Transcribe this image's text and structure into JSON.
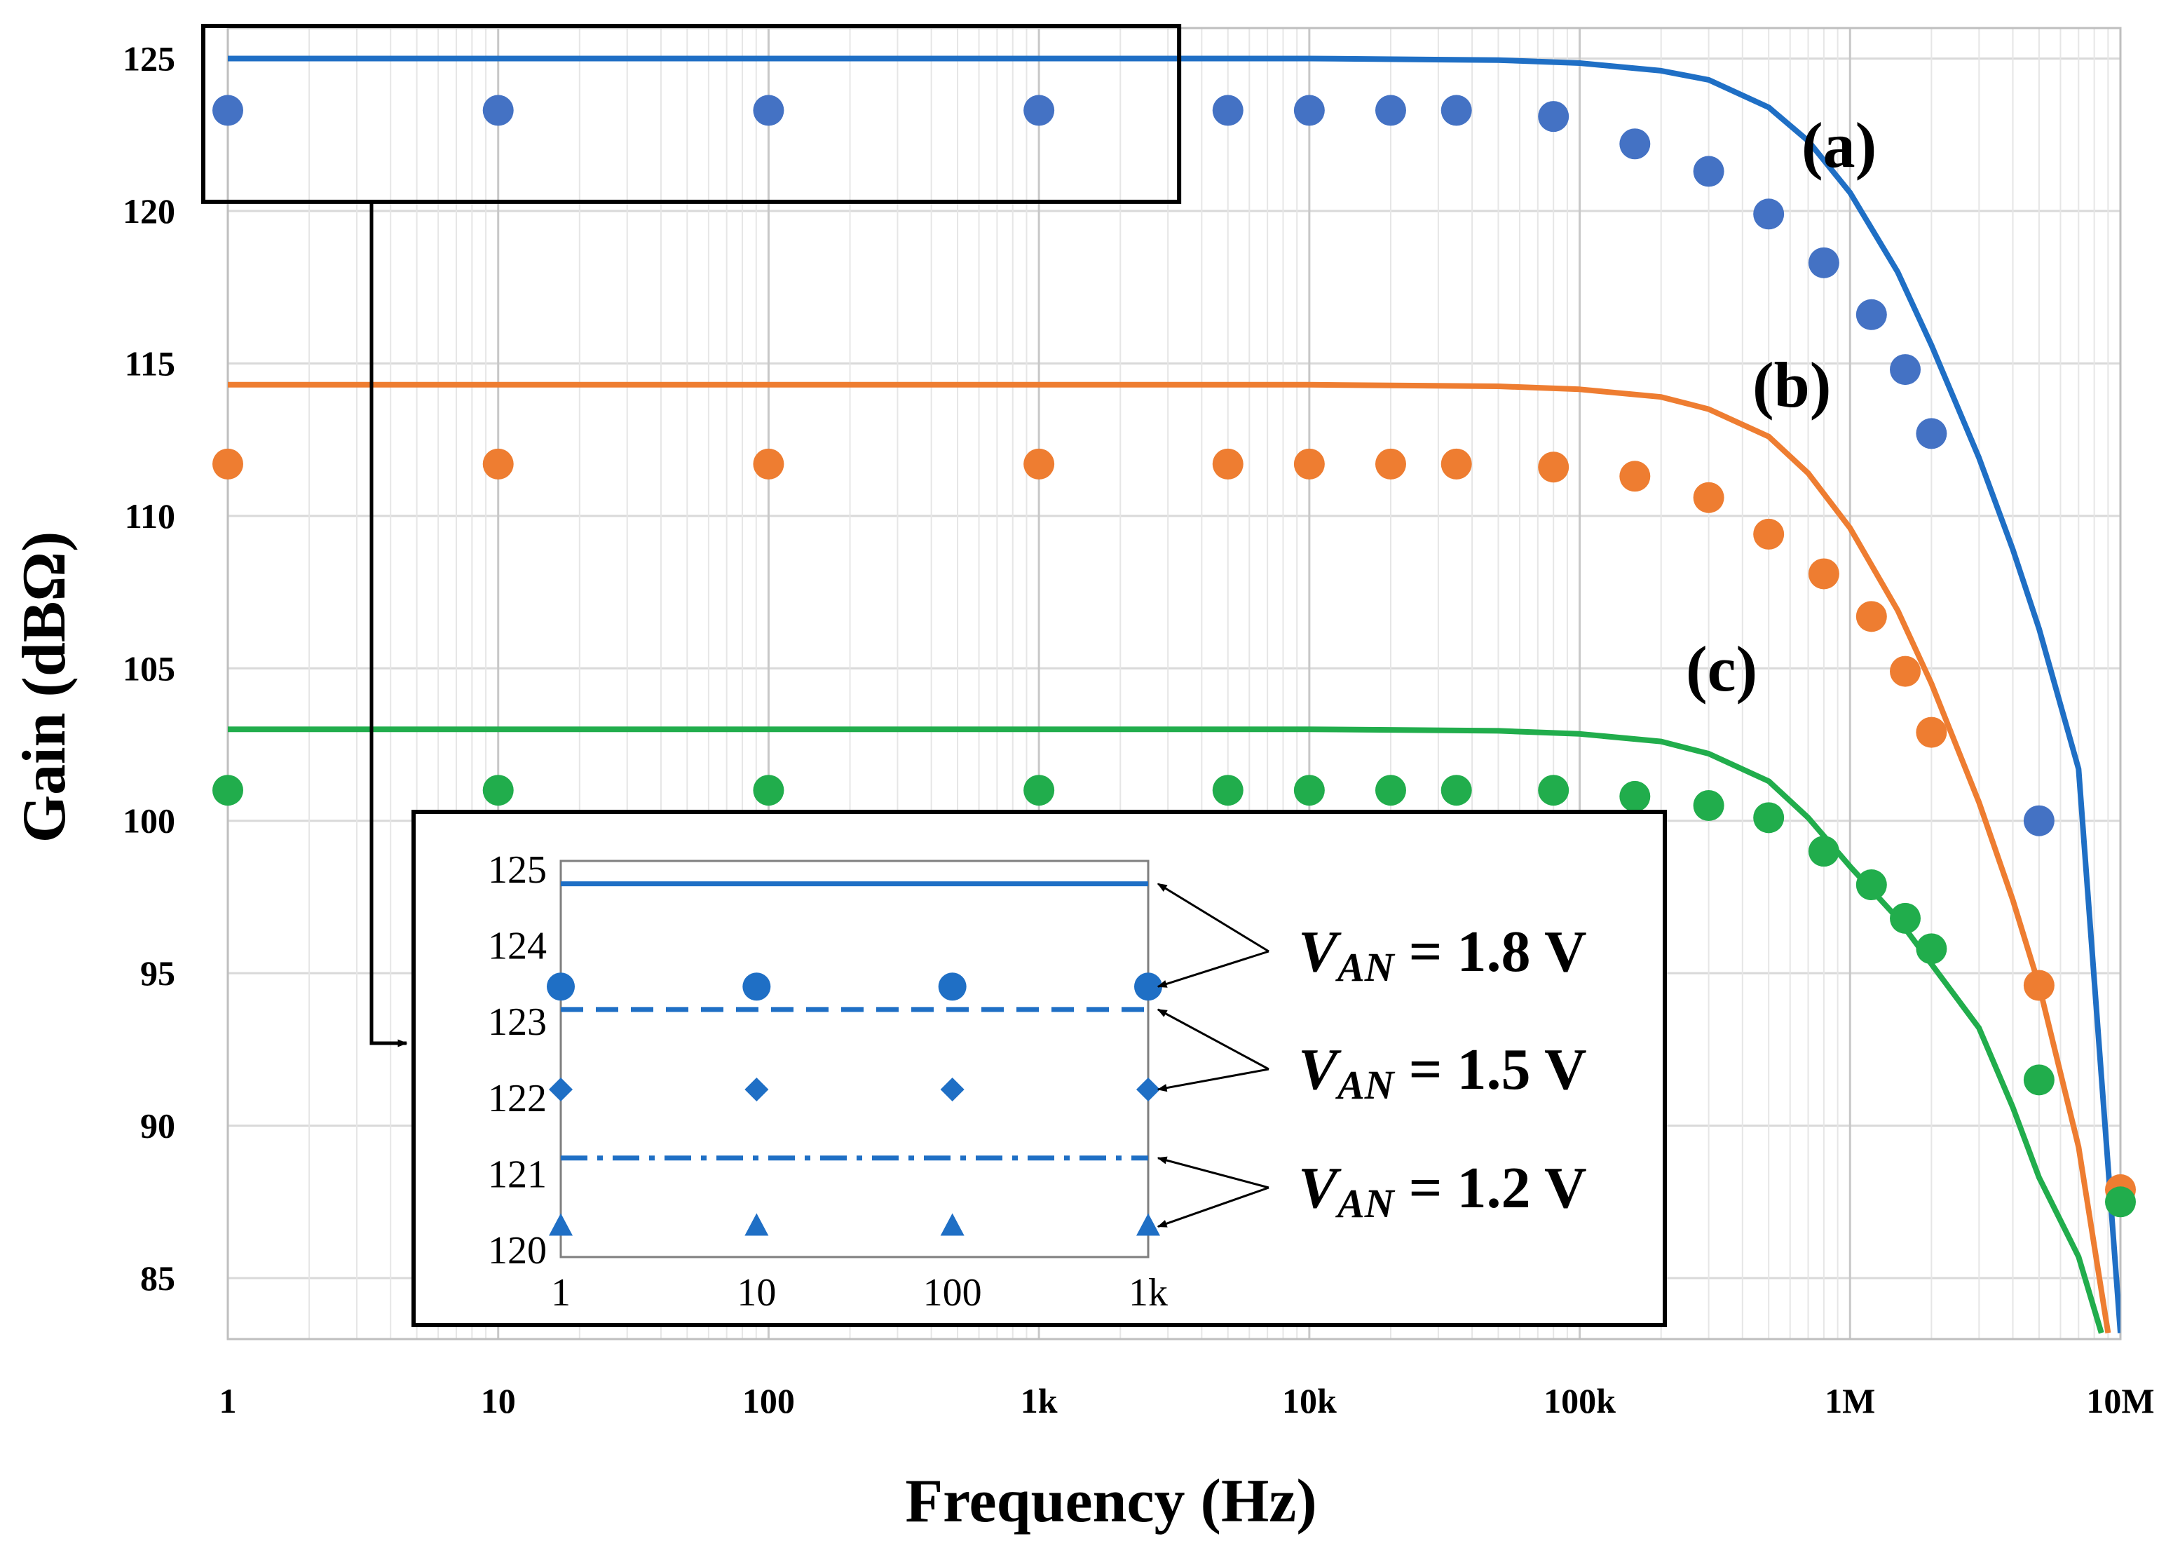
{
  "chart_data": {
    "type": "line",
    "title": "",
    "xlabel": "Frequency (Hz)",
    "ylabel": "Gain (dBΩ)",
    "xscale": "log",
    "xlim": [
      1,
      10000000
    ],
    "ylim": [
      83,
      126
    ],
    "x_ticks": [
      {
        "value": 1,
        "label": "1"
      },
      {
        "value": 10,
        "label": "10"
      },
      {
        "value": 100,
        "label": "100"
      },
      {
        "value": 1000,
        "label": "1k"
      },
      {
        "value": 10000,
        "label": "10k"
      },
      {
        "value": 100000,
        "label": "100k"
      },
      {
        "value": 1000000,
        "label": "1M"
      },
      {
        "value": 10000000,
        "label": "10M"
      }
    ],
    "y_ticks": [
      85,
      90,
      95,
      100,
      105,
      110,
      115,
      120,
      125
    ],
    "grid": true,
    "colors": {
      "a": "#1F6FC5",
      "b": "#EE7D31",
      "c": "#21AD4C",
      "a_markers": "#4472C4",
      "frame": "#000000"
    },
    "curve_labels": [
      "(a)",
      "(b)",
      "(c)"
    ],
    "series": [
      {
        "name": "(a) simulated",
        "kind": "line",
        "color_key": "a",
        "label_index": 0,
        "x": [
          1,
          10,
          100,
          1000,
          10000,
          50000,
          100000,
          200000,
          300000,
          500000,
          700000,
          1000000,
          1500000,
          2000000,
          3000000,
          4000000,
          5000000,
          7000000,
          10000000
        ],
        "y": [
          125,
          125,
          125,
          125,
          125,
          124.95,
          124.85,
          124.6,
          124.3,
          123.4,
          122.3,
          120.6,
          118.0,
          115.6,
          111.9,
          108.9,
          106.3,
          101.7,
          83.2
        ]
      },
      {
        "name": "(a) measured",
        "kind": "scatter",
        "color_key": "a_markers",
        "x": [
          1,
          10,
          100,
          1000,
          5000,
          10000,
          20000,
          35000,
          80000,
          160000,
          300000,
          500000,
          800000,
          1200000,
          1600000,
          2000000,
          5000000
        ],
        "y": [
          123.3,
          123.3,
          123.3,
          123.3,
          123.3,
          123.3,
          123.3,
          123.3,
          123.1,
          122.2,
          121.3,
          119.9,
          118.3,
          116.6,
          114.8,
          112.7,
          100.0
        ]
      },
      {
        "name": "(b) simulated",
        "kind": "line",
        "color_key": "b",
        "label_index": 1,
        "x": [
          1,
          10,
          100,
          1000,
          10000,
          50000,
          100000,
          200000,
          300000,
          500000,
          700000,
          1000000,
          1500000,
          2000000,
          3000000,
          4000000,
          5000000,
          7000000,
          9000000
        ],
        "y": [
          114.3,
          114.3,
          114.3,
          114.3,
          114.3,
          114.25,
          114.15,
          113.9,
          113.5,
          112.6,
          111.4,
          109.6,
          106.9,
          104.5,
          100.6,
          97.4,
          94.6,
          89.3,
          83.2
        ]
      },
      {
        "name": "(b) measured",
        "kind": "scatter",
        "color_key": "b",
        "x": [
          1,
          10,
          100,
          1000,
          5000,
          10000,
          20000,
          35000,
          80000,
          160000,
          300000,
          500000,
          800000,
          1200000,
          1600000,
          2000000,
          5000000,
          10000000
        ],
        "y": [
          111.7,
          111.7,
          111.7,
          111.7,
          111.7,
          111.7,
          111.7,
          111.7,
          111.6,
          111.3,
          110.6,
          109.4,
          108.1,
          106.7,
          104.9,
          102.9,
          94.6,
          87.9
        ]
      },
      {
        "name": "(c) simulated",
        "kind": "line",
        "color_key": "c",
        "label_index": 2,
        "x": [
          1,
          10,
          100,
          1000,
          10000,
          50000,
          100000,
          200000,
          300000,
          500000,
          700000,
          1000000,
          1500000,
          2000000,
          3000000,
          4000000,
          5000000,
          7000000,
          8500000
        ],
        "y": [
          103,
          103,
          103,
          103,
          103,
          102.95,
          102.85,
          102.6,
          102.2,
          101.3,
          100.1,
          98.5,
          96.8,
          95.3,
          93.2,
          90.6,
          88.3,
          85.7,
          83.2
        ]
      },
      {
        "name": "(c) measured",
        "kind": "scatter",
        "color_key": "c",
        "x": [
          1,
          10,
          100,
          1000,
          5000,
          10000,
          20000,
          35000,
          80000,
          160000,
          300000,
          500000,
          800000,
          1200000,
          1600000,
          2000000,
          5000000,
          10000000
        ],
        "y": [
          101,
          101,
          101,
          101,
          101,
          101,
          101,
          101,
          101,
          100.8,
          100.5,
          100.1,
          99.0,
          97.9,
          96.8,
          95.8,
          91.5,
          87.5
        ]
      }
    ],
    "zoom_box": {
      "x_range": [
        1,
        3300
      ],
      "y_range": [
        120.3,
        126
      ]
    },
    "inset": {
      "type": "line",
      "x_ticks": [
        {
          "value": 1,
          "label": "1"
        },
        {
          "value": 10,
          "label": "10"
        },
        {
          "value": 100,
          "label": "100"
        },
        {
          "value": 1000,
          "label": "1k"
        }
      ],
      "y_ticks": [
        120,
        121,
        122,
        123,
        124,
        125
      ],
      "ylim": [
        119.9,
        125.1
      ],
      "xlim": [
        1,
        1000
      ],
      "series": [
        {
          "name": "VAN = 1.8 V simulated",
          "kind": "line",
          "dash": "solid",
          "y": 124.8
        },
        {
          "name": "VAN = 1.8 V measured",
          "kind": "scatter",
          "marker": "circle",
          "x": [
            1,
            10,
            100,
            1000
          ],
          "y": [
            123.45,
            123.45,
            123.45,
            123.45
          ]
        },
        {
          "name": "VAN = 1.5 V simulated",
          "kind": "line",
          "dash": "dashed",
          "y": 123.15
        },
        {
          "name": "VAN = 1.5 V measured",
          "kind": "scatter",
          "marker": "diamond",
          "x": [
            1,
            10,
            100,
            1000
          ],
          "y": [
            122.1,
            122.1,
            122.1,
            122.1
          ]
        },
        {
          "name": "VAN = 1.2 V simulated",
          "kind": "line",
          "dash": "dash-dot",
          "y": 121.2
        },
        {
          "name": "VAN = 1.2 V measured",
          "kind": "scatter",
          "marker": "triangle",
          "x": [
            1,
            10,
            100,
            1000
          ],
          "y": [
            120.3,
            120.3,
            120.3,
            120.3
          ]
        }
      ],
      "legend": [
        {
          "var": "V",
          "sub": "AN",
          "value": " = 1.8 V"
        },
        {
          "var": "V",
          "sub": "AN",
          "value": " = 1.5 V"
        },
        {
          "var": "V",
          "sub": "AN",
          "value": " = 1.2 V"
        }
      ]
    }
  }
}
